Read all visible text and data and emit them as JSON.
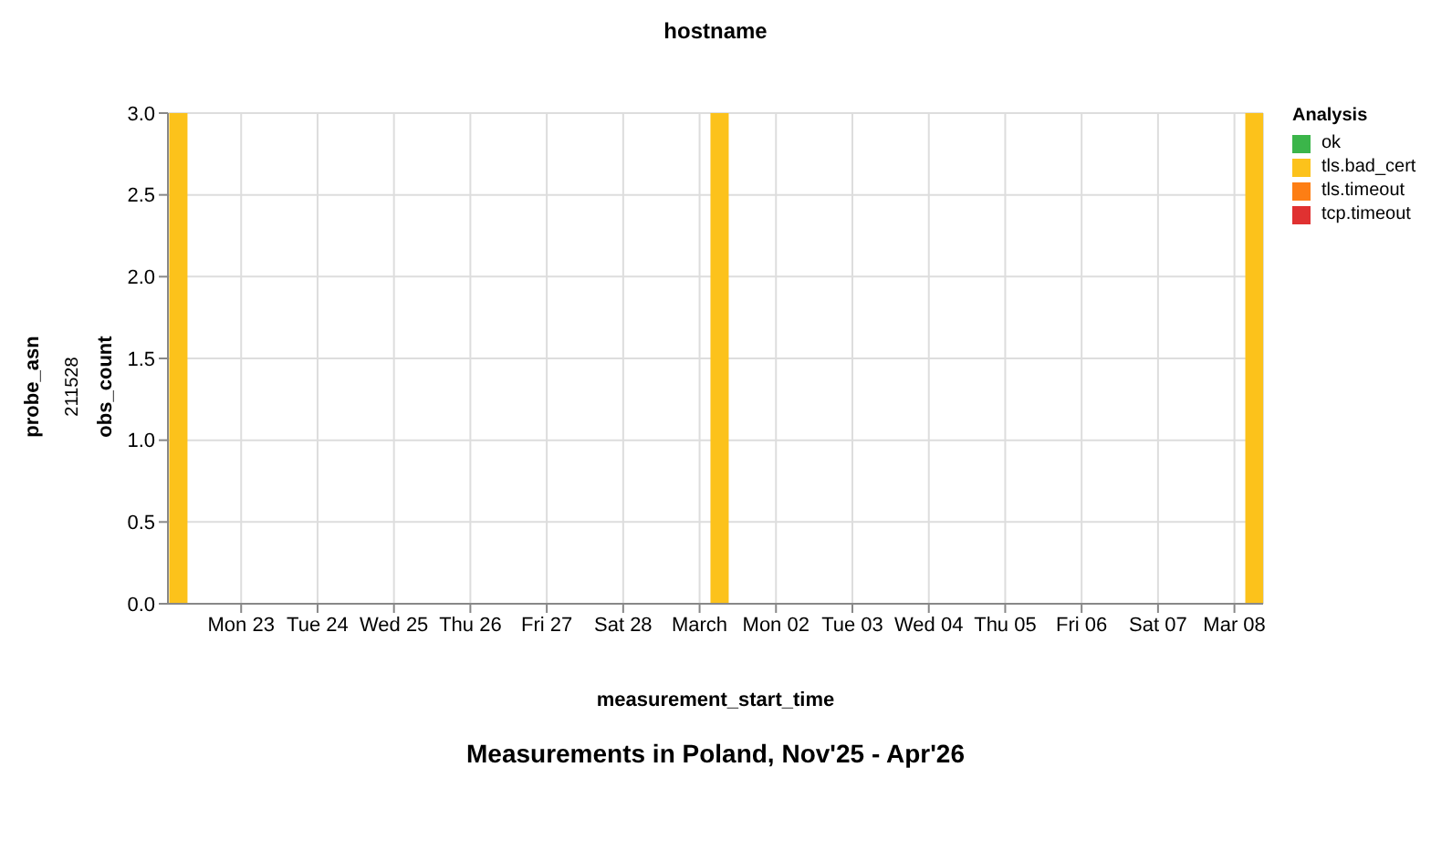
{
  "chart_data": {
    "type": "bar",
    "title": "Measurements in Poland, Nov'25 - Apr'26",
    "xlabel": "measurement_start_time",
    "ylabel": "obs_count",
    "legend_title": "Analysis",
    "annotations": [
      "hostname",
      "probe_asn",
      "211528"
    ],
    "x": [
      "2026-02-22T04:00",
      "2026-03-01T06:00",
      "2026-03-08T06:00"
    ],
    "series": [
      {
        "name": "ok",
        "color": "#3bb54a",
        "values": [
          null,
          null,
          null
        ]
      },
      {
        "name": "tls.bad_cert",
        "color": "#fcc21b",
        "values": [
          3,
          3,
          3
        ]
      },
      {
        "name": "tls.timeout",
        "color": "#fd7e14",
        "values": [
          null,
          null,
          null
        ]
      },
      {
        "name": "tcp.timeout",
        "color": "#e03131",
        "values": [
          null,
          null,
          null
        ]
      }
    ],
    "stacked": true,
    "xlim": [
      "2026-02-22T01:00",
      "2026-03-08T09:00"
    ],
    "xticks": [
      {
        "value": "2026-02-23",
        "label": "Mon 23"
      },
      {
        "value": "2026-02-24",
        "label": "Tue 24"
      },
      {
        "value": "2026-02-25",
        "label": "Wed 25"
      },
      {
        "value": "2026-02-26",
        "label": "Thu 26"
      },
      {
        "value": "2026-02-27",
        "label": "Fri 27"
      },
      {
        "value": "2026-02-28",
        "label": "Sat 28"
      },
      {
        "value": "2026-03-01",
        "label": "March"
      },
      {
        "value": "2026-03-02",
        "label": "Mon 02"
      },
      {
        "value": "2026-03-03",
        "label": "Tue 03"
      },
      {
        "value": "2026-03-04",
        "label": "Wed 04"
      },
      {
        "value": "2026-03-05",
        "label": "Thu 05"
      },
      {
        "value": "2026-03-06",
        "label": "Fri 06"
      },
      {
        "value": "2026-03-07",
        "label": "Sat 07"
      },
      {
        "value": "2026-03-08",
        "label": "Mar 08"
      }
    ],
    "ylim": [
      0,
      3
    ],
    "yticks": [
      {
        "value": 0,
        "label": "0.0"
      },
      {
        "value": 0.5,
        "label": "0.5"
      },
      {
        "value": 1,
        "label": "1.0"
      },
      {
        "value": 1.5,
        "label": "1.5"
      },
      {
        "value": 2,
        "label": "2.0"
      },
      {
        "value": 2.5,
        "label": "2.5"
      },
      {
        "value": 3,
        "label": "3.0"
      }
    ],
    "grid": true,
    "legend": "top right"
  }
}
